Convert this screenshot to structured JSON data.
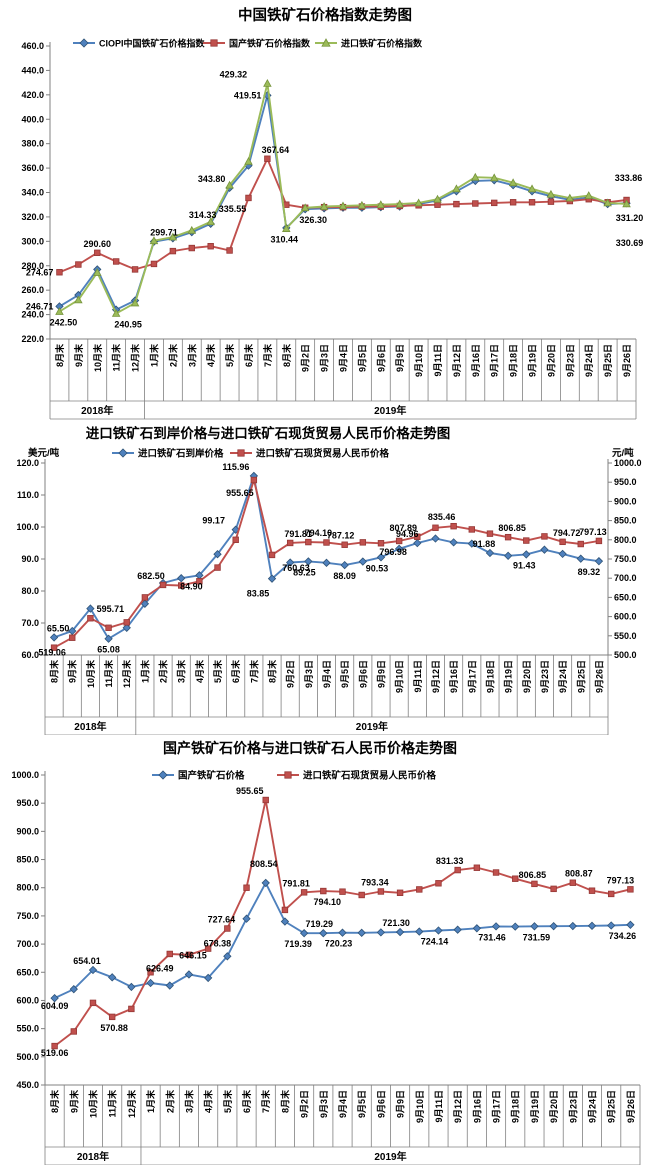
{
  "colors": {
    "axis": "#808080",
    "grid": "#808080",
    "text": "#000000",
    "series_blue": "#4F81BD",
    "series_blue_border": "#2F5376",
    "series_red": "#C0504D",
    "series_red_border": "#953735",
    "series_green": "#9BBB59",
    "series_green_border": "#76933C"
  },
  "categories": [
    "8月末",
    "9月末",
    "10月末",
    "11月末",
    "12月末",
    "1月末",
    "2月末",
    "3月末",
    "4月末",
    "5月末",
    "6月末",
    "7月末",
    "8月末",
    "9月2日",
    "9月3日",
    "9月4日",
    "9月5日",
    "9月6日",
    "9月9日",
    "9月10日",
    "9月11日",
    "9月12日",
    "9月16日",
    "9月17日",
    "9月18日",
    "9月19日",
    "9月20日",
    "9月23日",
    "9月24日",
    "9月25日",
    "9月26日"
  ],
  "year_groups": [
    {
      "label": "2018年",
      "count": 5
    },
    {
      "label": "2019年",
      "count": 26
    }
  ],
  "chart_data": [
    {
      "type": "line",
      "title": "中国铁矿石价格指数走势图",
      "grid": false,
      "legend_position": "top",
      "axes": [
        {
          "side": "left",
          "min": 220,
          "max": 460,
          "step": 20,
          "unit": ""
        }
      ],
      "series": [
        {
          "name": "CIOPI中国铁矿石价格指数",
          "color": "#4F81BD",
          "border": "#2F5376",
          "marker": "diamond",
          "axis": "left",
          "values": [
            246.71,
            256,
            277,
            244,
            251.5,
            299.71,
            302.5,
            307.5,
            314.33,
            343.8,
            362,
            419.51,
            311,
            326.3,
            327,
            327.5,
            327.5,
            328,
            328.5,
            330.5,
            333.5,
            341,
            349.5,
            350,
            346,
            341,
            337,
            334,
            336,
            330.5,
            331.2
          ],
          "point_labels": [
            {
              "i": 0,
              "t": "246.71",
              "p": "left"
            },
            {
              "i": 5,
              "t": "299.71",
              "p": "above",
              "dx": 10
            },
            {
              "i": 8,
              "t": "314.33",
              "p": "above",
              "dx": -8
            },
            {
              "i": 9,
              "t": "343.80",
              "p": "above",
              "dx": -18
            },
            {
              "i": 11,
              "t": "419.51",
              "p": "left"
            },
            {
              "i": 13,
              "t": "326.30",
              "p": "below",
              "dx": 8
            },
            {
              "i": 30,
              "t": "331.20",
              "p": "endmid"
            }
          ]
        },
        {
          "name": "国产铁矿石价格指数",
          "color": "#C0504D",
          "border": "#953735",
          "marker": "square",
          "axis": "left",
          "values": [
            274.67,
            281,
            290.6,
            283.5,
            277,
            281.5,
            292,
            294.5,
            296,
            292.5,
            335.55,
            367.64,
            330,
            327.5,
            328,
            328,
            328.5,
            328.5,
            329,
            329.5,
            330,
            330.5,
            331,
            331.5,
            332,
            332,
            332.5,
            333,
            334.5,
            332,
            333.86
          ],
          "point_labels": [
            {
              "i": 0,
              "t": "274.67",
              "p": "left"
            },
            {
              "i": 2,
              "t": "290.60",
              "p": "above"
            },
            {
              "i": 10,
              "t": "335.55",
              "p": "below",
              "dx": -16
            },
            {
              "i": 11,
              "t": "367.64",
              "p": "above",
              "dx": 8
            },
            {
              "i": 30,
              "t": "333.86",
              "p": "endtop"
            }
          ]
        },
        {
          "name": "进口铁矿石价格指数",
          "color": "#9BBB59",
          "border": "#76933C",
          "marker": "triangle",
          "axis": "left",
          "values": [
            242.5,
            252,
            274.5,
            240.95,
            249.5,
            300.5,
            303.5,
            309,
            316,
            346,
            365.5,
            429.32,
            310.44,
            327.5,
            328.5,
            329,
            329.5,
            330,
            330.5,
            331.5,
            334.5,
            343,
            352.5,
            352,
            348,
            343,
            338.5,
            335.5,
            337.5,
            331.5,
            330.69
          ],
          "point_labels": [
            {
              "i": 0,
              "t": "242.50",
              "p": "below",
              "dx": 4
            },
            {
              "i": 3,
              "t": "240.95",
              "p": "below",
              "dx": 12
            },
            {
              "i": 11,
              "t": "429.32",
              "p": "above",
              "dx": -34
            },
            {
              "i": 12,
              "t": "310.44",
              "p": "below",
              "dx": -2
            },
            {
              "i": 30,
              "t": "330.69",
              "p": "endbot"
            }
          ]
        }
      ]
    },
    {
      "type": "line",
      "title": "进口铁矿石到岸价格与进口铁矿石现货贸易人民币价格走势图",
      "grid": false,
      "legend_position": "top",
      "axes": [
        {
          "side": "left",
          "min": 60,
          "max": 120,
          "step": 10,
          "unit": "美元/吨"
        },
        {
          "side": "right",
          "min": 500,
          "max": 1000,
          "step": 50,
          "unit": "元/吨"
        }
      ],
      "series": [
        {
          "name": "进口铁矿石到岸价格",
          "color": "#4F81BD",
          "border": "#2F5376",
          "marker": "diamond",
          "axis": "left",
          "values": [
            65.5,
            67.5,
            74.5,
            65.08,
            68.5,
            76,
            82.5,
            84,
            84.9,
            91.5,
            99.17,
            115.96,
            83.85,
            88.9,
            89.25,
            88.8,
            88.09,
            89.2,
            90.53,
            93.2,
            94.96,
            96.4,
            95.2,
            94.8,
            91.88,
            91,
            91.43,
            92.9,
            91.6,
            90.1,
            89.32
          ],
          "point_labels": [
            {
              "i": 0,
              "t": "65.50",
              "p": "above",
              "dx": 4
            },
            {
              "i": 3,
              "t": "65.08",
              "p": "below"
            },
            {
              "i": 8,
              "t": "84.90",
              "p": "below",
              "dx": -8
            },
            {
              "i": 10,
              "t": "99.17",
              "p": "above",
              "dx": -22
            },
            {
              "i": 11,
              "t": "115.96",
              "p": "above",
              "dx": -18
            },
            {
              "i": 12,
              "t": "83.85",
              "p": "below",
              "dx": -14,
              "dy": 4
            },
            {
              "i": 14,
              "t": "89.25",
              "p": "below",
              "dx": -4
            },
            {
              "i": 16,
              "t": "88.09",
              "p": "below"
            },
            {
              "i": 18,
              "t": "90.53",
              "p": "below",
              "dx": -4
            },
            {
              "i": 20,
              "t": "94.96",
              "p": "above",
              "dx": -10
            },
            {
              "i": 24,
              "t": "91.88",
              "p": "above",
              "dx": -6
            },
            {
              "i": 26,
              "t": "91.43",
              "p": "below",
              "dx": -2
            },
            {
              "i": 30,
              "t": "89.32",
              "p": "below",
              "dx": -10
            }
          ]
        },
        {
          "name": "进口铁矿石现货贸易人民币价格",
          "color": "#C0504D",
          "border": "#953735",
          "marker": "square",
          "axis": "right",
          "values": [
            519.06,
            545,
            595.71,
            570.88,
            585,
            650,
            682.5,
            681,
            692,
            727.64,
            800,
            955.65,
            760.63,
            791.81,
            794.1,
            793,
            787.12,
            793.34,
            791,
            796.98,
            807.89,
            831.33,
            835.46,
            827,
            816,
            806.85,
            798,
            808.87,
            794.72,
            789,
            797.13
          ],
          "point_labels": [
            {
              "i": 0,
              "t": "519.06",
              "p": "below",
              "dx": -2,
              "dy": -6
            },
            {
              "i": 2,
              "t": "595.71",
              "p": "above",
              "dx": 20
            },
            {
              "i": 6,
              "t": "682.50",
              "p": "above",
              "dx": -12
            },
            {
              "i": 11,
              "t": "955.65",
              "p": "below",
              "dx": -14,
              "dy": 2
            },
            {
              "i": 12,
              "t": "760.63",
              "p": "below",
              "dx": 24,
              "dy": 2
            },
            {
              "i": 13,
              "t": "791.81",
              "p": "above",
              "dx": 8
            },
            {
              "i": 14,
              "t": "794.10",
              "p": "above",
              "dx": 10
            },
            {
              "i": 16,
              "t": "787.12",
              "p": "above",
              "dx": -4
            },
            {
              "i": 19,
              "t": "796.98",
              "p": "below",
              "dx": -6
            },
            {
              "i": 20,
              "t": "807.89",
              "p": "above",
              "dx": -14
            },
            {
              "i": 22,
              "t": "835.46",
              "p": "above",
              "dx": -12
            },
            {
              "i": 25,
              "t": "806.85",
              "p": "above",
              "dx": 4
            },
            {
              "i": 28,
              "t": "794.72",
              "p": "above",
              "dx": 4
            },
            {
              "i": 30,
              "t": "797.13",
              "p": "above",
              "dx": -6
            }
          ]
        }
      ]
    },
    {
      "type": "line",
      "title": "国产铁矿石价格与进口铁矿石人民币价格走势图",
      "grid": false,
      "legend_position": "top",
      "axes": [
        {
          "side": "left",
          "min": 450,
          "max": 1000,
          "step": 50,
          "unit": ""
        }
      ],
      "series": [
        {
          "name": "国产铁矿石价格",
          "color": "#4F81BD",
          "border": "#2F5376",
          "marker": "diamond",
          "axis": "left",
          "values": [
            604.09,
            620,
            654.01,
            641,
            624,
            631,
            626.49,
            646.15,
            640,
            678.38,
            745,
            808.54,
            740,
            719.39,
            719.29,
            720.23,
            720,
            720.8,
            721.3,
            722.2,
            724.14,
            725.5,
            728,
            731.46,
            731,
            731.59,
            731.8,
            732,
            732.4,
            733,
            734.26
          ],
          "point_labels": [
            {
              "i": 0,
              "t": "604.09",
              "p": "below",
              "dy": -3
            },
            {
              "i": 2,
              "t": "654.01",
              "p": "above",
              "dx": -6
            },
            {
              "i": 6,
              "t": "626.49",
              "p": "above",
              "dx": -10,
              "dy": -8
            },
            {
              "i": 7,
              "t": "646.15",
              "p": "above",
              "dx": 4,
              "dy": -10
            },
            {
              "i": 9,
              "t": "678.38",
              "p": "above",
              "dx": -10,
              "dy": -4
            },
            {
              "i": 11,
              "t": "808.54",
              "p": "above",
              "dx": -2,
              "dy": -10
            },
            {
              "i": 13,
              "t": "719.39",
              "p": "below",
              "dx": -6
            },
            {
              "i": 14,
              "t": "719.29",
              "p": "above",
              "dx": -4
            },
            {
              "i": 15,
              "t": "720.23",
              "p": "below",
              "dx": -4
            },
            {
              "i": 18,
              "t": "721.30",
              "p": "above",
              "dx": -4
            },
            {
              "i": 20,
              "t": "724.14",
              "p": "below",
              "dx": -4
            },
            {
              "i": 23,
              "t": "731.46",
              "p": "below",
              "dx": -4
            },
            {
              "i": 25,
              "t": "731.59",
              "p": "below",
              "dx": 2
            },
            {
              "i": 30,
              "t": "734.26",
              "p": "below",
              "dx": -8
            }
          ]
        },
        {
          "name": "进口铁矿石现货贸易人民币价格",
          "color": "#C0504D",
          "border": "#953735",
          "marker": "square",
          "axis": "left",
          "values": [
            519.06,
            545,
            595.71,
            570.88,
            585,
            650,
            682.5,
            681,
            692,
            727.64,
            800,
            955.65,
            760.63,
            791.81,
            794.1,
            793,
            787.12,
            793.34,
            791,
            796.98,
            807.89,
            831.33,
            835.46,
            827,
            816,
            806.85,
            798,
            808.87,
            794.72,
            789,
            797.13
          ],
          "point_labels": [
            {
              "i": 0,
              "t": "519.06",
              "p": "below",
              "dy": -4
            },
            {
              "i": 3,
              "t": "570.88",
              "p": "below",
              "dx": 2
            },
            {
              "i": 9,
              "t": "727.64",
              "p": "above",
              "dx": -6
            },
            {
              "i": 11,
              "t": "955.65",
              "p": "above",
              "dx": -16
            },
            {
              "i": 13,
              "t": "791.81",
              "p": "above",
              "dx": -8
            },
            {
              "i": 14,
              "t": "794.10",
              "p": "below",
              "dx": 4
            },
            {
              "i": 17,
              "t": "793.34",
              "p": "above",
              "dx": -6
            },
            {
              "i": 21,
              "t": "831.33",
              "p": "above",
              "dx": -8
            },
            {
              "i": 25,
              "t": "806.85",
              "p": "above",
              "dx": -2
            },
            {
              "i": 27,
              "t": "808.87",
              "p": "above",
              "dx": 6
            },
            {
              "i": 30,
              "t": "797.13",
              "p": "above",
              "dx": -10
            }
          ]
        }
      ]
    }
  ]
}
